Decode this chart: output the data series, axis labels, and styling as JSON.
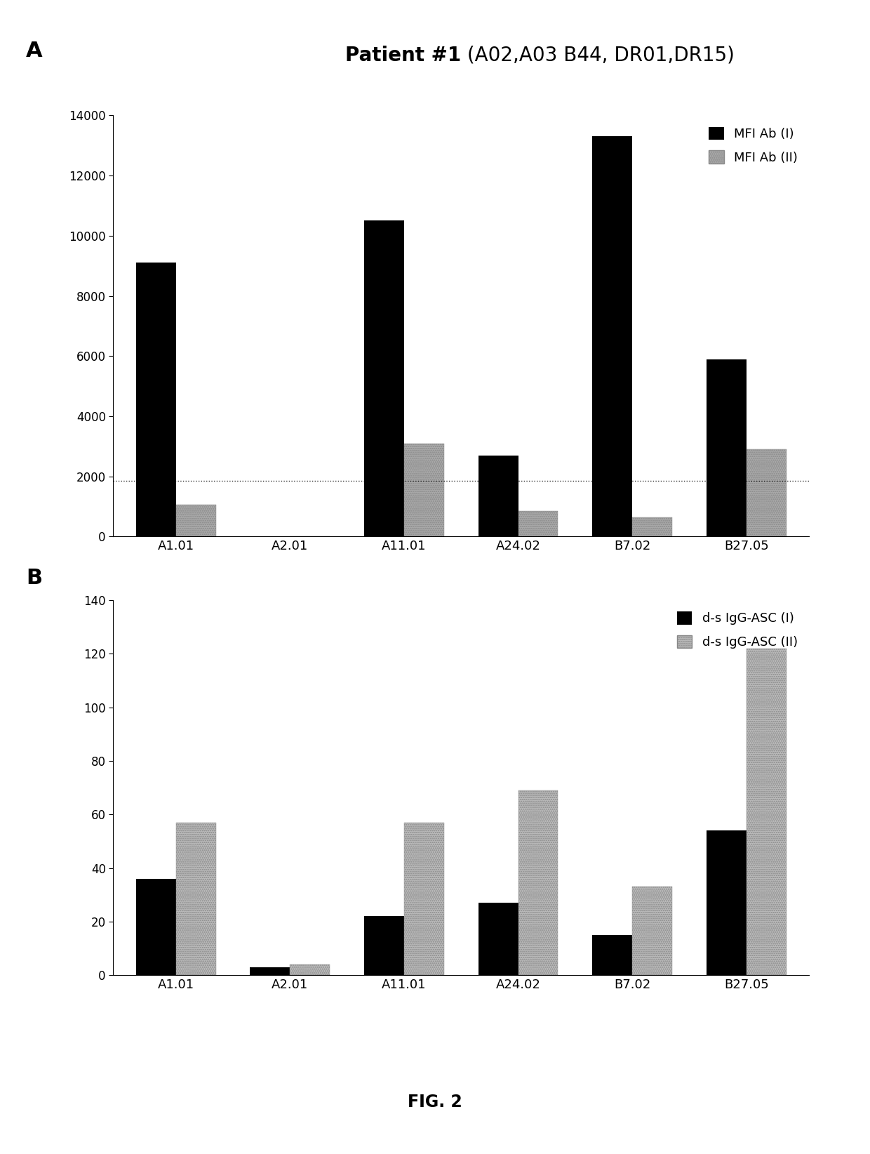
{
  "title_bold": "Patient #1",
  "title_normal": " (A02,A03 B44, DR01,DR15)",
  "categories": [
    "A1.01",
    "A2.01",
    "A11.01",
    "A24.02",
    "B7.02",
    "B27.05"
  ],
  "panel_A": {
    "series1_label": "MFI Ab (I)",
    "series2_label": "MFI Ab (II)",
    "series1_values": [
      9100,
      0,
      10500,
      2700,
      13300,
      5900
    ],
    "series2_values": [
      1050,
      0,
      3100,
      850,
      650,
      2900
    ],
    "ylim": [
      0,
      14000
    ],
    "yticks": [
      0,
      2000,
      4000,
      6000,
      8000,
      10000,
      12000,
      14000
    ],
    "hline_y": 1850,
    "color1": "#000000",
    "color2": "#aaaaaa"
  },
  "panel_B": {
    "series1_label": "d-s IgG-ASC (I)",
    "series2_label": "d-s IgG-ASC (II)",
    "series1_values": [
      36,
      3,
      22,
      27,
      15,
      54
    ],
    "series2_values": [
      57,
      4,
      57,
      69,
      33,
      122
    ],
    "ylim": [
      0,
      140
    ],
    "yticks": [
      0,
      20,
      40,
      60,
      80,
      100,
      120,
      140
    ],
    "color1": "#000000",
    "color2": "#bbbbbb"
  },
  "fig2_label": "FIG. 2",
  "bar_width": 0.35,
  "background_color": "#ffffff"
}
